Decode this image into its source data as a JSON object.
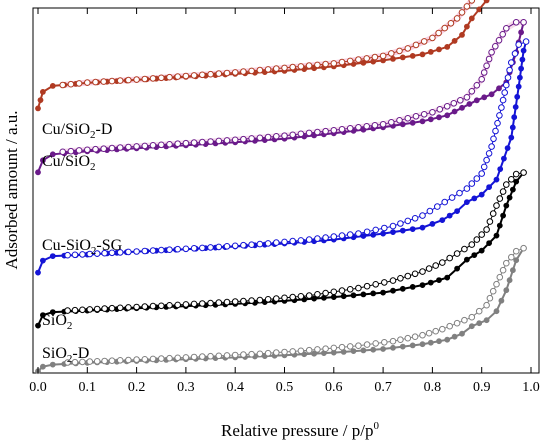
{
  "chart_data": {
    "type": "line",
    "title": "",
    "xlabel": "Relative pressure / p/p",
    "xlabel_sup": "0",
    "ylabel": "Adsorbed amount / a.u.",
    "xlim": [
      0.0,
      1.0
    ],
    "ylim": [
      0,
      1
    ],
    "xticks": [
      "0.0",
      "0.1",
      "0.2",
      "0.3",
      "0.4",
      "0.5",
      "0.6",
      "0.7",
      "0.8",
      "0.9",
      "1.0"
    ],
    "grid": false,
    "legend": "inline labels at left",
    "series": [
      {
        "name": "Cu/SiO2-D",
        "label": {
          "main": "Cu/SiO",
          "sub": "2",
          "tail": "-D"
        },
        "color": "#b03a22",
        "pink": "#f7c6dc",
        "baseline": 0.275,
        "adsorption": [
          [
            0.0,
            0.0
          ],
          [
            0.01,
            0.055
          ],
          [
            0.03,
            0.075
          ],
          [
            0.1,
            0.085
          ],
          [
            0.2,
            0.095
          ],
          [
            0.3,
            0.105
          ],
          [
            0.4,
            0.115
          ],
          [
            0.5,
            0.125
          ],
          [
            0.6,
            0.14
          ],
          [
            0.7,
            0.16
          ],
          [
            0.78,
            0.18
          ],
          [
            0.83,
            0.205
          ],
          [
            0.86,
            0.245
          ],
          [
            0.88,
            0.3
          ],
          [
            0.91,
            0.36
          ],
          [
            0.94,
            0.42
          ],
          [
            0.96,
            0.52
          ],
          [
            0.975,
            0.68
          ],
          [
            0.985,
            0.82
          ]
        ],
        "desorption": [
          [
            0.985,
            0.82
          ],
          [
            0.96,
            0.82
          ],
          [
            0.94,
            0.78
          ],
          [
            0.92,
            0.66
          ],
          [
            0.9,
            0.5
          ],
          [
            0.88,
            0.36
          ],
          [
            0.85,
            0.3
          ],
          [
            0.8,
            0.235
          ],
          [
            0.75,
            0.2
          ],
          [
            0.7,
            0.175
          ],
          [
            0.6,
            0.15
          ],
          [
            0.5,
            0.135
          ],
          [
            0.4,
            0.12
          ],
          [
            0.3,
            0.108
          ],
          [
            0.2,
            0.096
          ],
          [
            0.1,
            0.086
          ],
          [
            0.05,
            0.078
          ]
        ]
      },
      {
        "name": "Cu/SiO2",
        "label": {
          "main": "Cu/SiO",
          "sub": "2",
          "tail": ""
        },
        "color": "#6a1a8a",
        "pink": "#f4d2e6",
        "baseline": 0.45,
        "adsorption": [
          [
            0.0,
            0.0
          ],
          [
            0.01,
            0.04
          ],
          [
            0.03,
            0.06
          ],
          [
            0.1,
            0.07
          ],
          [
            0.2,
            0.08
          ],
          [
            0.3,
            0.09
          ],
          [
            0.4,
            0.1
          ],
          [
            0.5,
            0.112
          ],
          [
            0.6,
            0.13
          ],
          [
            0.7,
            0.15
          ],
          [
            0.78,
            0.17
          ],
          [
            0.83,
            0.19
          ],
          [
            0.86,
            0.215
          ],
          [
            0.89,
            0.24
          ],
          [
            0.92,
            0.26
          ],
          [
            0.95,
            0.3
          ],
          [
            0.97,
            0.4
          ],
          [
            0.985,
            0.5
          ]
        ],
        "desorption": [
          [
            0.985,
            0.5
          ],
          [
            0.97,
            0.5
          ],
          [
            0.95,
            0.48
          ],
          [
            0.92,
            0.4
          ],
          [
            0.9,
            0.31
          ],
          [
            0.87,
            0.25
          ],
          [
            0.83,
            0.22
          ],
          [
            0.8,
            0.2
          ],
          [
            0.75,
            0.18
          ],
          [
            0.7,
            0.16
          ],
          [
            0.6,
            0.14
          ],
          [
            0.5,
            0.122
          ],
          [
            0.4,
            0.108
          ],
          [
            0.3,
            0.097
          ],
          [
            0.2,
            0.086
          ],
          [
            0.1,
            0.075
          ],
          [
            0.05,
            0.068
          ]
        ]
      },
      {
        "name": "Cu-SiO2-SG",
        "label": {
          "main": "Cu-SiO",
          "sub": "2",
          "tail": "-SG"
        },
        "color": "#1414d6",
        "pink": "",
        "baseline": 0.725,
        "adsorption": [
          [
            0.0,
            0.0
          ],
          [
            0.01,
            0.04
          ],
          [
            0.03,
            0.055
          ],
          [
            0.1,
            0.06
          ],
          [
            0.2,
            0.07
          ],
          [
            0.3,
            0.078
          ],
          [
            0.4,
            0.087
          ],
          [
            0.5,
            0.097
          ],
          [
            0.6,
            0.11
          ],
          [
            0.7,
            0.13
          ],
          [
            0.78,
            0.15
          ],
          [
            0.82,
            0.175
          ],
          [
            0.85,
            0.205
          ],
          [
            0.87,
            0.235
          ],
          [
            0.9,
            0.26
          ],
          [
            0.93,
            0.31
          ],
          [
            0.96,
            0.45
          ],
          [
            0.975,
            0.62
          ],
          [
            0.985,
            0.74
          ],
          [
            0.99,
            0.77
          ]
        ],
        "desorption": [
          [
            0.99,
            0.77
          ],
          [
            0.975,
            0.76
          ],
          [
            0.96,
            0.7
          ],
          [
            0.94,
            0.55
          ],
          [
            0.92,
            0.42
          ],
          [
            0.9,
            0.33
          ],
          [
            0.87,
            0.28
          ],
          [
            0.84,
            0.25
          ],
          [
            0.81,
            0.22
          ],
          [
            0.78,
            0.19
          ],
          [
            0.72,
            0.155
          ],
          [
            0.65,
            0.13
          ],
          [
            0.55,
            0.11
          ],
          [
            0.45,
            0.095
          ],
          [
            0.35,
            0.084
          ],
          [
            0.25,
            0.075
          ],
          [
            0.15,
            0.066
          ],
          [
            0.06,
            0.058
          ]
        ]
      },
      {
        "name": "SiO2",
        "label": {
          "main": "SiO",
          "sub": "2",
          "tail": ""
        },
        "color": "#000000",
        "pink": "",
        "baseline": 0.87,
        "adsorption": [
          [
            0.0,
            0.0
          ],
          [
            0.01,
            0.035
          ],
          [
            0.03,
            0.045
          ],
          [
            0.1,
            0.05
          ],
          [
            0.2,
            0.058
          ],
          [
            0.3,
            0.065
          ],
          [
            0.4,
            0.072
          ],
          [
            0.5,
            0.082
          ],
          [
            0.6,
            0.095
          ],
          [
            0.7,
            0.11
          ],
          [
            0.78,
            0.135
          ],
          [
            0.83,
            0.16
          ],
          [
            0.85,
            0.19
          ],
          [
            0.87,
            0.22
          ],
          [
            0.9,
            0.25
          ],
          [
            0.93,
            0.3
          ],
          [
            0.95,
            0.4
          ],
          [
            0.97,
            0.48
          ],
          [
            0.985,
            0.51
          ]
        ],
        "desorption": [
          [
            0.985,
            0.51
          ],
          [
            0.97,
            0.505
          ],
          [
            0.95,
            0.47
          ],
          [
            0.93,
            0.4
          ],
          [
            0.91,
            0.32
          ],
          [
            0.88,
            0.27
          ],
          [
            0.85,
            0.24
          ],
          [
            0.82,
            0.21
          ],
          [
            0.78,
            0.18
          ],
          [
            0.72,
            0.15
          ],
          [
            0.65,
            0.125
          ],
          [
            0.55,
            0.1
          ],
          [
            0.45,
            0.085
          ],
          [
            0.35,
            0.075
          ],
          [
            0.25,
            0.066
          ],
          [
            0.15,
            0.058
          ],
          [
            0.06,
            0.05
          ]
        ]
      },
      {
        "name": "SiO2-D",
        "label": {
          "main": "SiO",
          "sub": "2",
          "tail": "-D"
        },
        "color": "#808080",
        "pink": "",
        "baseline": 0.995,
        "adsorption": [
          [
            0.0,
            0.0
          ],
          [
            0.01,
            0.015
          ],
          [
            0.03,
            0.022
          ],
          [
            0.1,
            0.028
          ],
          [
            0.2,
            0.034
          ],
          [
            0.3,
            0.04
          ],
          [
            0.4,
            0.046
          ],
          [
            0.5,
            0.053
          ],
          [
            0.6,
            0.062
          ],
          [
            0.7,
            0.074
          ],
          [
            0.78,
            0.09
          ],
          [
            0.83,
            0.105
          ],
          [
            0.86,
            0.125
          ],
          [
            0.88,
            0.15
          ],
          [
            0.91,
            0.17
          ],
          [
            0.93,
            0.2
          ],
          [
            0.95,
            0.27
          ],
          [
            0.97,
            0.37
          ],
          [
            0.985,
            0.41
          ]
        ],
        "desorption": [
          [
            0.985,
            0.41
          ],
          [
            0.97,
            0.4
          ],
          [
            0.95,
            0.36
          ],
          [
            0.93,
            0.29
          ],
          [
            0.91,
            0.22
          ],
          [
            0.88,
            0.18
          ],
          [
            0.85,
            0.16
          ],
          [
            0.82,
            0.14
          ],
          [
            0.78,
            0.12
          ],
          [
            0.72,
            0.1
          ],
          [
            0.65,
            0.085
          ],
          [
            0.55,
            0.07
          ],
          [
            0.45,
            0.058
          ],
          [
            0.35,
            0.05
          ],
          [
            0.25,
            0.042
          ],
          [
            0.15,
            0.035
          ],
          [
            0.06,
            0.029
          ]
        ]
      }
    ]
  }
}
